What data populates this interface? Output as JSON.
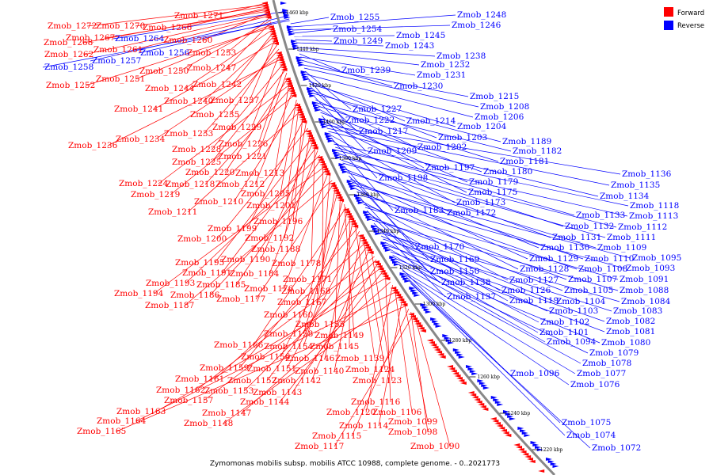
{
  "legend": {
    "forward": {
      "label": "Forward",
      "color": "#ff0000"
    },
    "reverse": {
      "label": "Reverse",
      "color": "#0000ff"
    }
  },
  "footer": "Zymomonas mobilis subsp. mobilis ATCC 10988, complete genome. - 0..2021773",
  "ticks": [
    "1460 kbp",
    "1440 kbp",
    "1420 kbp",
    "1400 kbp",
    "1380 kbp",
    "1360 kbp",
    "1340 kbp",
    "1320 kbp",
    "1300 kbp",
    "1280 kbp",
    "1260 kbp",
    "1240 kbp",
    "1220 kbp"
  ],
  "forward_genes": [
    "Zmob_1271",
    "Zmob_1272",
    "Zmob_1270",
    "Zmob_1266",
    "Zmob_1268",
    "Zmob_1267",
    "Zmob_1260",
    "Zmob_1262",
    "Zmob_1261",
    "Zmob_1253",
    "Zmob_1250",
    "Zmob_1247",
    "Zmob_1251",
    "Zmob_1252",
    "Zmob_1244",
    "Zmob_1242",
    "Zmob_1240",
    "Zmob_1237",
    "Zmob_1241",
    "Zmob_1235",
    "Zmob_1233",
    "Zmob_1229",
    "Zmob_1234",
    "Zmob_1236",
    "Zmob_1228",
    "Zmob_1226",
    "Zmob_1225",
    "Zmob_1221",
    "Zmob_1220",
    "Zmob_1213",
    "Zmob_1224",
    "Zmob_1218",
    "Zmob_1212",
    "Zmob_1219",
    "Zmob_1205",
    "Zmob_1210",
    "Zmob_1201",
    "Zmob_1211",
    "Zmob_1196",
    "Zmob_1199",
    "Zmob_1192",
    "Zmob_1200",
    "Zmob_1188",
    "Zmob_1195",
    "Zmob_1190",
    "Zmob_1178",
    "Zmob_1191",
    "Zmob_1184",
    "Zmob_1193",
    "Zmob_1185",
    "Zmob_1171",
    "Zmob_1194",
    "Zmob_1186",
    "Zmob_1176",
    "Zmob_1168",
    "Zmob_1187",
    "Zmob_1177",
    "Zmob_1167",
    "Zmob_1160",
    "Zmob_1155",
    "Zmob_1158",
    "Zmob_1149",
    "Zmob_1166",
    "Zmob_1154",
    "Zmob_1145",
    "Zmob_1156",
    "Zmob_1146",
    "Zmob_1139",
    "Zmob_1159",
    "Zmob_1151",
    "Zmob_1140",
    "Zmob_1124",
    "Zmob_1161",
    "Zmob_1152",
    "Zmob_1142",
    "Zmob_1123",
    "Zmob_1162",
    "Zmob_1153",
    "Zmob_1143",
    "Zmob_1157",
    "Zmob_1144",
    "Zmob_1116",
    "Zmob_1163",
    "Zmob_1147",
    "Zmob_1120",
    "Zmob_1106",
    "Zmob_1164",
    "Zmob_1148",
    "Zmob_1114",
    "Zmob_1099",
    "Zmob_1165",
    "Zmob_1115",
    "Zmob_1098",
    "Zmob_1117",
    "Zmob_1090"
  ],
  "reverse_genes": [
    "Zmob_1264",
    "Zmob_1257",
    "Zmob_1256",
    "Zmob_1258",
    "Zmob_1255",
    "Zmob_1248",
    "Zmob_1246",
    "Zmob_1254",
    "Zmob_1245",
    "Zmob_1249",
    "Zmob_1243",
    "Zmob_1238",
    "Zmob_1232",
    "Zmob_1239",
    "Zmob_1231",
    "Zmob_1230",
    "Zmob_1215",
    "Zmob_1208",
    "Zmob_1227",
    "Zmob_1206",
    "Zmob_1222",
    "Zmob_1214",
    "Zmob_1204",
    "Zmob_1217",
    "Zmob_1203",
    "Zmob_1189",
    "Zmob_1209",
    "Zmob_1202",
    "Zmob_1182",
    "Zmob_1181",
    "Zmob_1197",
    "Zmob_1180",
    "Zmob_1198",
    "Zmob_1179",
    "Zmob_1175",
    "Zmob_1136",
    "Zmob_1135",
    "Zmob_1134",
    "Zmob_1173",
    "Zmob_1183",
    "Zmob_1172",
    "Zmob_1118",
    "Zmob_1133",
    "Zmob_1113",
    "Zmob_1132",
    "Zmob_1112",
    "Zmob_1131",
    "Zmob_1111",
    "Zmob_1170",
    "Zmob_1130",
    "Zmob_1109",
    "Zmob_1169",
    "Zmob_1129",
    "Zmob_1110",
    "Zmob_1095",
    "Zmob_1128",
    "Zmob_1108",
    "Zmob_1093",
    "Zmob_1150",
    "Zmob_1127",
    "Zmob_1107",
    "Zmob_1091",
    "Zmob_1138",
    "Zmob_1126",
    "Zmob_1105",
    "Zmob_1088",
    "Zmob_1137",
    "Zmob_1119",
    "Zmob_1104",
    "Zmob_1084",
    "Zmob_1103",
    "Zmob_1083",
    "Zmob_1102",
    "Zmob_1082",
    "Zmob_1101",
    "Zmob_1081",
    "Zmob_1094",
    "Zmob_1080",
    "Zmob_1079",
    "Zmob_1078",
    "Zmob_1096",
    "Zmob_1077",
    "Zmob_1076",
    "Zmob_1075",
    "Zmob_1074",
    "Zmob_1072"
  ]
}
